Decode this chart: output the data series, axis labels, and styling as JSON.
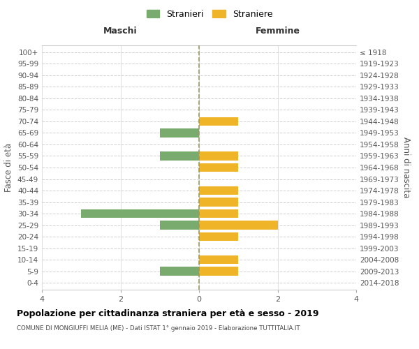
{
  "age_groups": [
    "100+",
    "95-99",
    "90-94",
    "85-89",
    "80-84",
    "75-79",
    "70-74",
    "65-69",
    "60-64",
    "55-59",
    "50-54",
    "45-49",
    "40-44",
    "35-39",
    "30-34",
    "25-29",
    "20-24",
    "15-19",
    "10-14",
    "5-9",
    "0-4"
  ],
  "birth_years": [
    "≤ 1918",
    "1919-1923",
    "1924-1928",
    "1929-1933",
    "1934-1938",
    "1939-1943",
    "1944-1948",
    "1949-1953",
    "1954-1958",
    "1959-1963",
    "1964-1968",
    "1969-1973",
    "1974-1978",
    "1979-1983",
    "1984-1988",
    "1989-1993",
    "1994-1998",
    "1999-2003",
    "2004-2008",
    "2009-2013",
    "2014-2018"
  ],
  "maschi": [
    0,
    0,
    0,
    0,
    0,
    0,
    0,
    1,
    0,
    1,
    0,
    0,
    0,
    0,
    3,
    1,
    0,
    0,
    0,
    1,
    0
  ],
  "femmine": [
    0,
    0,
    0,
    0,
    0,
    0,
    1,
    0,
    0,
    1,
    1,
    0,
    1,
    1,
    1,
    2,
    1,
    0,
    1,
    1,
    0
  ],
  "color_maschi": "#7aab6e",
  "color_femmine": "#f0b429",
  "xlim": 4,
  "title": "Popolazione per cittadinanza straniera per età e sesso - 2019",
  "subtitle": "COMUNE DI MONGIUFFI MELIA (ME) - Dati ISTAT 1° gennaio 2019 - Elaborazione TUTTITALIA.IT",
  "ylabel_left": "Fasce di età",
  "ylabel_right": "Anni di nascita",
  "label_maschi": "Stranieri",
  "label_femmine": "Straniere",
  "header_left": "Maschi",
  "header_right": "Femmine",
  "background_color": "#ffffff",
  "grid_color": "#d0d0d0",
  "bar_height": 0.75
}
